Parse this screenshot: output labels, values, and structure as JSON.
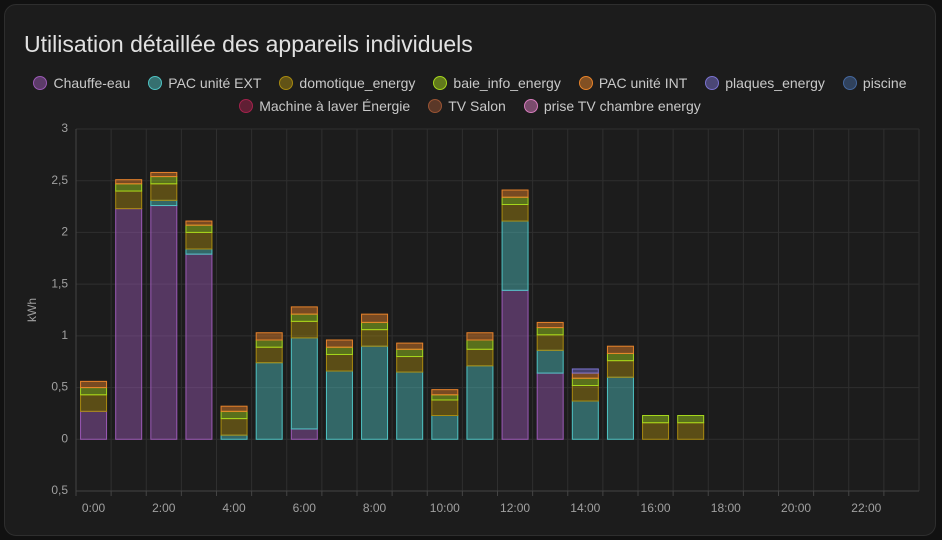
{
  "chart_data": {
    "type": "bar",
    "stacked": true,
    "title": "Utilisation détaillée des appareils individuels",
    "y_label": "kWh",
    "categories": [
      "0:00",
      null,
      "2:00",
      null,
      "4:00",
      null,
      "6:00",
      null,
      "8:00",
      null,
      "10:00",
      null,
      "12:00",
      null,
      "14:00",
      null,
      "16:00",
      null,
      "18:00",
      null,
      "20:00",
      null,
      "22:00",
      null
    ],
    "ylim": [
      -0.5,
      3
    ],
    "yticks": [
      {
        "value": -0.5,
        "label": "0,5"
      },
      0,
      {
        "value": 0.5,
        "label": "0,5"
      },
      1,
      {
        "value": 1.5,
        "label": "1,5"
      },
      2,
      {
        "value": 2.5,
        "label": "2,5"
      },
      3
    ],
    "grid": true,
    "legend": "top",
    "series": [
      {
        "name": "Chauffe-eau",
        "color": "#9b59b6",
        "values": [
          0.27,
          2.23,
          2.26,
          1.79,
          0,
          0,
          0.1,
          0,
          0,
          0,
          0,
          0,
          1.44,
          0.64,
          0,
          0,
          0,
          0,
          0,
          0,
          0,
          0,
          0,
          0
        ]
      },
      {
        "name": "PAC unité EXT",
        "color": "#4fc3c3",
        "values": [
          0,
          0,
          0.05,
          0.05,
          0.04,
          0.74,
          0.88,
          0.66,
          0.9,
          0.65,
          0.23,
          0.71,
          0.67,
          0.22,
          0.37,
          0.6,
          0,
          0,
          0,
          0,
          0,
          0,
          0,
          0
        ]
      },
      {
        "name": "domotique_energy",
        "color": "#a88a10",
        "values": [
          0.16,
          0.17,
          0.16,
          0.16,
          0.16,
          0.15,
          0.16,
          0.16,
          0.16,
          0.15,
          0.15,
          0.16,
          0.16,
          0.15,
          0.15,
          0.16,
          0.16,
          0.16,
          0,
          0,
          0,
          0,
          0,
          0
        ]
      },
      {
        "name": "baie_info_energy",
        "color": "#a5d61c",
        "values": [
          0.07,
          0.07,
          0.07,
          0.07,
          0.07,
          0.07,
          0.07,
          0.07,
          0.07,
          0.07,
          0.05,
          0.09,
          0.07,
          0.07,
          0.07,
          0.07,
          0.07,
          0.07,
          0,
          0,
          0,
          0,
          0,
          0
        ]
      },
      {
        "name": "PAC unité INT",
        "color": "#e8832a",
        "values": [
          0.06,
          0.04,
          0.04,
          0.04,
          0.05,
          0.07,
          0.07,
          0.07,
          0.08,
          0.06,
          0.05,
          0.07,
          0.07,
          0.05,
          0.05,
          0.07,
          0,
          0,
          0,
          0,
          0,
          0,
          0,
          0
        ]
      },
      {
        "name": "plaques_energy",
        "color": "#7a72d0",
        "values": [
          0,
          0,
          0,
          0,
          0,
          0,
          0,
          0,
          0,
          0,
          0,
          0,
          0,
          0,
          0.04,
          0,
          0,
          0,
          0,
          0,
          0,
          0,
          0,
          0
        ]
      },
      {
        "name": "piscine",
        "color": "#44679e",
        "values": [
          0,
          0,
          0,
          0,
          0,
          0,
          0,
          0,
          0,
          0,
          0,
          0,
          0,
          0,
          0,
          0,
          0,
          0,
          0,
          0,
          0,
          0,
          0,
          0
        ]
      },
      {
        "name": "Machine à laver Énergie",
        "color": "#a3224c",
        "values": [
          0,
          0,
          0,
          0,
          0,
          0,
          0,
          0,
          0,
          0,
          0,
          0,
          0,
          0,
          0,
          0,
          0,
          0,
          0,
          0,
          0,
          0,
          0,
          0
        ]
      },
      {
        "name": "TV Salon",
        "color": "#9a5433",
        "values": [
          0,
          0,
          0,
          0,
          0,
          0,
          0,
          0,
          0,
          0,
          0,
          0,
          0,
          0,
          0,
          0,
          0,
          0,
          0,
          0,
          0,
          0,
          0,
          0
        ]
      },
      {
        "name": "prise TV chambre energy",
        "color": "#d77cbd",
        "values": [
          0,
          0,
          0,
          0,
          0,
          0,
          0,
          0,
          0,
          0,
          0,
          0,
          0,
          0,
          0,
          0,
          0,
          0,
          0,
          0,
          0,
          0,
          0,
          0
        ]
      }
    ]
  }
}
